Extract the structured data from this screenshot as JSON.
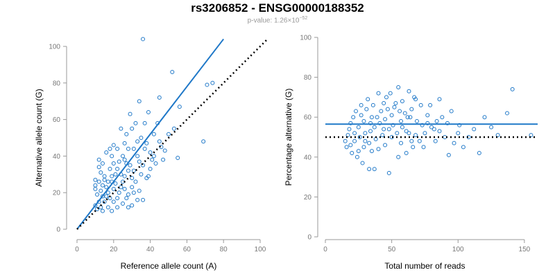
{
  "title": "rs3206852 - ENSG00000188352",
  "subtitle_prefix": "p-value: 1.26×10",
  "subtitle_exp": "−52",
  "colors": {
    "points": "#1f78c8",
    "fit": "#1f78c8",
    "reference": "#000000",
    "axis": "#999999"
  },
  "chart_data": [
    {
      "type": "scatter",
      "xlabel": "Reference allele count (A)",
      "ylabel": "Alternative allele count (G)",
      "xlim": [
        0,
        100
      ],
      "ylim": [
        0,
        100
      ],
      "xticks": [
        0,
        20,
        40,
        60,
        80,
        100
      ],
      "yticks": [
        0,
        20,
        40,
        60,
        80,
        100
      ],
      "fit_line": {
        "x": [
          0,
          80
        ],
        "y": [
          0,
          104
        ]
      },
      "reference_line": {
        "x": [
          0,
          104
        ],
        "y": [
          0,
          104
        ]
      },
      "points": [
        [
          36,
          104
        ],
        [
          52,
          86
        ],
        [
          45,
          72
        ],
        [
          34,
          70
        ],
        [
          29,
          63
        ],
        [
          56,
          67
        ],
        [
          39,
          64
        ],
        [
          71,
          79
        ],
        [
          74,
          80
        ],
        [
          32,
          58
        ],
        [
          44,
          58
        ],
        [
          30,
          55
        ],
        [
          27,
          52
        ],
        [
          35,
          50
        ],
        [
          26,
          47
        ],
        [
          20,
          46
        ],
        [
          22,
          44
        ],
        [
          31,
          44
        ],
        [
          38,
          47
        ],
        [
          45,
          48
        ],
        [
          16,
          42
        ],
        [
          19,
          40
        ],
        [
          25,
          40
        ],
        [
          33,
          40
        ],
        [
          42,
          40
        ],
        [
          48,
          43
        ],
        [
          55,
          39
        ],
        [
          69,
          48
        ],
        [
          12,
          38
        ],
        [
          14,
          36
        ],
        [
          20,
          36
        ],
        [
          27,
          36
        ],
        [
          36,
          35
        ],
        [
          22,
          33
        ],
        [
          28,
          32
        ],
        [
          35,
          30
        ],
        [
          40,
          33
        ],
        [
          13,
          31
        ],
        [
          15,
          29
        ],
        [
          19,
          29
        ],
        [
          24,
          30
        ],
        [
          30,
          28
        ],
        [
          10,
          27
        ],
        [
          12,
          26
        ],
        [
          17,
          26
        ],
        [
          21,
          25
        ],
        [
          25,
          26
        ],
        [
          32,
          26
        ],
        [
          38,
          28
        ],
        [
          14,
          24
        ],
        [
          16,
          23
        ],
        [
          20,
          22
        ],
        [
          26,
          22
        ],
        [
          30,
          23
        ],
        [
          10,
          22
        ],
        [
          13,
          21
        ],
        [
          17,
          20
        ],
        [
          23,
          20
        ],
        [
          28,
          19
        ],
        [
          34,
          21
        ],
        [
          11,
          19
        ],
        [
          14,
          18
        ],
        [
          18,
          17
        ],
        [
          22,
          17
        ],
        [
          27,
          17
        ],
        [
          33,
          16
        ],
        [
          12,
          15
        ],
        [
          15,
          15
        ],
        [
          20,
          15
        ],
        [
          25,
          14
        ],
        [
          30,
          13
        ],
        [
          10,
          13
        ],
        [
          13,
          12
        ],
        [
          17,
          12
        ],
        [
          22,
          12
        ],
        [
          28,
          12
        ],
        [
          11,
          11
        ],
        [
          14,
          10
        ],
        [
          19,
          10
        ],
        [
          16,
          18
        ],
        [
          24,
          23
        ],
        [
          21,
          30
        ],
        [
          29,
          35
        ],
        [
          18,
          33
        ],
        [
          34,
          37
        ],
        [
          26,
          29
        ],
        [
          15,
          27
        ],
        [
          23,
          37
        ],
        [
          41,
          38
        ],
        [
          46,
          45
        ],
        [
          50,
          52
        ],
        [
          37,
          44
        ],
        [
          43,
          36
        ],
        [
          31,
          32
        ],
        [
          39,
          29
        ],
        [
          47,
          38
        ],
        [
          33,
          48
        ],
        [
          28,
          44
        ],
        [
          42,
          52
        ],
        [
          53,
          55
        ],
        [
          37,
          58
        ],
        [
          24,
          55
        ],
        [
          18,
          44
        ],
        [
          12,
          34
        ],
        [
          10,
          24
        ],
        [
          19,
          26
        ],
        [
          31,
          20
        ],
        [
          36,
          16
        ],
        [
          26,
          38
        ],
        [
          40,
          42
        ]
      ]
    },
    {
      "type": "scatter",
      "xlabel": "Total number of reads",
      "ylabel": "Percentage alternative (G)",
      "xlim": [
        0,
        160
      ],
      "ylim": [
        0,
        100
      ],
      "xticks": [
        0,
        50,
        100,
        150
      ],
      "yticks": [
        0,
        20,
        40,
        60,
        80,
        100
      ],
      "fit_line": {
        "x": [
          0,
          160
        ],
        "y": [
          56.5,
          56.5
        ]
      },
      "reference_line": {
        "x": [
          0,
          160
        ],
        "y": [
          50,
          50
        ]
      },
      "points": [
        [
          141,
          74
        ],
        [
          120,
          60
        ],
        [
          137,
          62
        ],
        [
          155,
          51
        ],
        [
          116,
          42
        ],
        [
          93,
          41
        ],
        [
          101,
          56
        ],
        [
          86,
          69
        ],
        [
          79,
          66
        ],
        [
          68,
          69
        ],
        [
          65,
          64
        ],
        [
          58,
          68
        ],
        [
          53,
          67
        ],
        [
          46,
          70
        ],
        [
          40,
          72
        ],
        [
          32,
          69
        ],
        [
          27,
          66
        ],
        [
          23,
          63
        ],
        [
          21,
          60
        ],
        [
          19,
          57
        ],
        [
          18,
          54
        ],
        [
          17,
          51
        ],
        [
          15,
          48
        ],
        [
          16,
          45
        ],
        [
          20,
          42
        ],
        [
          24,
          40
        ],
        [
          28,
          37
        ],
        [
          33,
          34
        ],
        [
          37,
          34
        ],
        [
          48,
          32
        ],
        [
          55,
          40
        ],
        [
          61,
          42
        ],
        [
          66,
          45
        ],
        [
          71,
          48
        ],
        [
          75,
          52
        ],
        [
          80,
          55
        ],
        [
          84,
          58
        ],
        [
          88,
          60
        ],
        [
          95,
          63
        ],
        [
          62,
          60
        ],
        [
          57,
          58
        ],
        [
          50,
          61
        ],
        [
          45,
          59
        ],
        [
          41,
          57
        ],
        [
          37,
          55
        ],
        [
          34,
          53
        ],
        [
          30,
          52
        ],
        [
          26,
          50
        ],
        [
          22,
          48
        ],
        [
          19,
          46
        ],
        [
          25,
          55
        ],
        [
          29,
          58
        ],
        [
          35,
          60
        ],
        [
          42,
          63
        ],
        [
          47,
          64
        ],
        [
          52,
          65
        ],
        [
          56,
          63
        ],
        [
          60,
          62
        ],
        [
          64,
          60
        ],
        [
          69,
          58
        ],
        [
          73,
          56
        ],
        [
          77,
          57
        ],
        [
          82,
          54
        ],
        [
          86,
          53
        ],
        [
          90,
          50
        ],
        [
          97,
          47
        ],
        [
          104,
          45
        ],
        [
          108,
          50
        ],
        [
          112,
          54
        ],
        [
          125,
          55
        ],
        [
          130,
          51
        ],
        [
          61,
          53
        ],
        [
          54,
          52
        ],
        [
          48,
          54
        ],
        [
          43,
          51
        ],
        [
          38,
          49
        ],
        [
          33,
          47
        ],
        [
          29,
          45
        ],
        [
          25,
          43
        ],
        [
          22,
          52
        ],
        [
          27,
          61
        ],
        [
          31,
          64
        ],
        [
          36,
          66
        ],
        [
          44,
          67
        ],
        [
          49,
          72
        ],
        [
          55,
          75
        ],
        [
          63,
          73
        ],
        [
          67,
          70
        ],
        [
          72,
          66
        ],
        [
          77,
          61
        ],
        [
          51,
          56
        ],
        [
          58,
          55
        ],
        [
          63,
          52
        ],
        [
          68,
          51
        ],
        [
          44,
          54
        ],
        [
          39,
          60
        ],
        [
          34,
          57
        ],
        [
          30,
          48
        ],
        [
          57,
          47
        ],
        [
          65,
          48
        ],
        [
          50,
          50
        ],
        [
          45,
          46
        ],
        [
          40,
          44
        ],
        [
          35,
          43
        ],
        [
          74,
          45
        ],
        [
          83,
          48
        ],
        [
          92,
          57
        ],
        [
          100,
          52
        ]
      ]
    }
  ]
}
